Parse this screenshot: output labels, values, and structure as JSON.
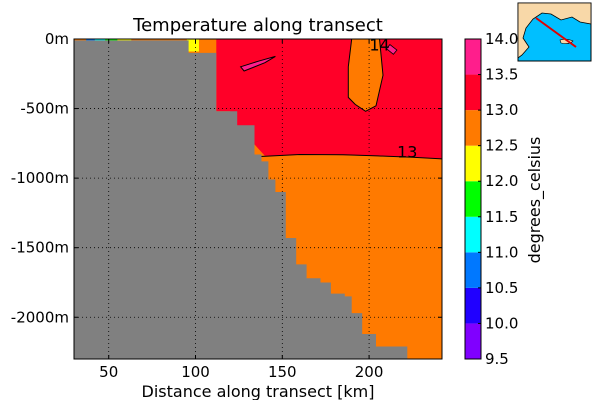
{
  "chart_data": {
    "type": "heatmap",
    "title": "Temperature along transect",
    "xlabel": "Distance along transect [km]",
    "ylabel": "",
    "xlim": [
      30,
      242
    ],
    "ylim": [
      -2300,
      0
    ],
    "x_ticks": [
      {
        "value": 50,
        "label": "50"
      },
      {
        "value": 100,
        "label": "100"
      },
      {
        "value": 150,
        "label": "150"
      },
      {
        "value": 200,
        "label": "200"
      }
    ],
    "y_ticks": [
      {
        "value": 0,
        "label": "0m"
      },
      {
        "value": -500,
        "label": "-500m"
      },
      {
        "value": -1000,
        "label": "-1000m"
      },
      {
        "value": -1500,
        "label": "-1500m"
      },
      {
        "value": -2000,
        "label": "-2000m"
      }
    ],
    "grid": true,
    "colorbar": {
      "label": "degrees_celsius",
      "levels": [
        9.5,
        10.0,
        10.5,
        11.0,
        11.5,
        12.0,
        12.5,
        13.0,
        13.5,
        14.0
      ],
      "tick_labels": [
        "9.5",
        "10.0",
        "10.5",
        "11.0",
        "11.5",
        "12.0",
        "12.5",
        "13.0",
        "13.5",
        "14.0"
      ],
      "colors": [
        "#8000ff",
        "#2000ff",
        "#0078ff",
        "#00ffff",
        "#00ff00",
        "#ffff00",
        "#ff7a00",
        "#ff0028",
        "#ff1e8c"
      ]
    },
    "contour_labels": [
      {
        "text": "13",
        "x": 222,
        "y": -810
      },
      {
        "text": "14",
        "x": 206,
        "y": -40
      }
    ],
    "bathymetry": [
      [
        30,
        -10
      ],
      [
        96,
        -100
      ],
      [
        112,
        -520
      ],
      [
        124,
        -620
      ],
      [
        134,
        -830
      ],
      [
        138,
        -880
      ],
      [
        142,
        -1010
      ],
      [
        146,
        -1100
      ],
      [
        152,
        -1430
      ],
      [
        158,
        -1620
      ],
      [
        164,
        -1720
      ],
      [
        172,
        -1750
      ],
      [
        178,
        -1830
      ],
      [
        186,
        -1850
      ],
      [
        190,
        -1970
      ],
      [
        196,
        -2120
      ],
      [
        204,
        -2210
      ],
      [
        222,
        -2300
      ]
    ],
    "fields": {
      "warm_core_13": [
        [
          112,
          0
        ],
        [
          242,
          0
        ],
        [
          242,
          -860
        ],
        [
          200,
          -840
        ],
        [
          170,
          -830
        ],
        [
          140,
          -840
        ],
        [
          124,
          -620
        ],
        [
          120,
          -520
        ],
        [
          112,
          -520
        ]
      ],
      "intrusion_12_5": [
        [
          190,
          0
        ],
        [
          206,
          0
        ],
        [
          208,
          -260
        ],
        [
          204,
          -480
        ],
        [
          198,
          -520
        ],
        [
          192,
          -470
        ],
        [
          188,
          -420
        ],
        [
          188,
          -200
        ]
      ],
      "patch_14_left": [
        [
          126,
          -200
        ],
        [
          136,
          -160
        ],
        [
          146,
          -125
        ],
        [
          140,
          -170
        ],
        [
          128,
          -230
        ]
      ],
      "patch_14_right": [
        [
          212,
          -40
        ],
        [
          216,
          -80
        ],
        [
          214,
          -110
        ],
        [
          210,
          -70
        ]
      ],
      "cold_patches": [
        {
          "level": 10.5,
          "x": [
            37,
            42
          ],
          "y": [
            0,
            -30
          ]
        },
        {
          "level": 11.0,
          "x": [
            42,
            48
          ],
          "y": [
            0,
            -40
          ]
        },
        {
          "level": 11.5,
          "x": [
            48,
            55
          ],
          "y": [
            0,
            -50
          ]
        },
        {
          "level": 12.0,
          "x": [
            55,
            63
          ],
          "y": [
            0,
            -60
          ]
        },
        {
          "level": 12.0,
          "x": [
            95,
            102
          ],
          "y": [
            0,
            -90
          ]
        }
      ]
    }
  }
}
